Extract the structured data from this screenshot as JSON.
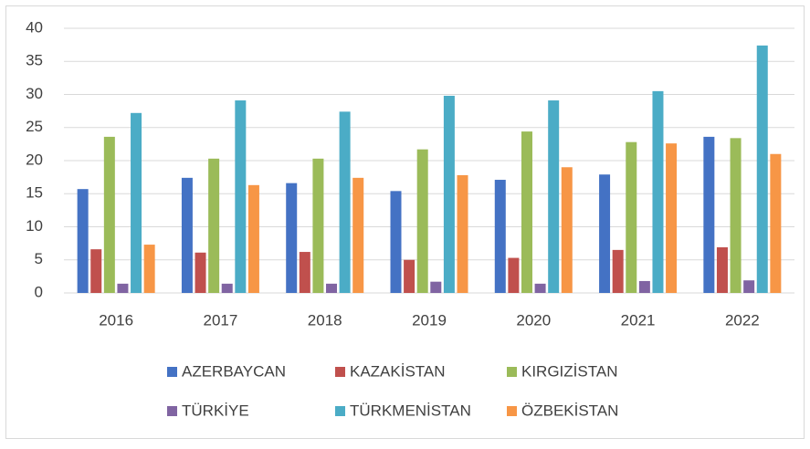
{
  "chart_data": {
    "type": "bar",
    "categories": [
      "2016",
      "2017",
      "2018",
      "2019",
      "2020",
      "2021",
      "2022"
    ],
    "series": [
      {
        "name": "AZERBAYCAN",
        "color": "#4472c4",
        "values": [
          15.7,
          17.4,
          16.6,
          15.4,
          17.1,
          17.9,
          23.6
        ]
      },
      {
        "name": "KAZAKİSTAN",
        "color": "#c0504d",
        "values": [
          6.6,
          6.1,
          6.2,
          5.0,
          5.3,
          6.5,
          6.9
        ]
      },
      {
        "name": "KIRGIZİSTAN",
        "color": "#9bbb59",
        "values": [
          23.6,
          20.3,
          20.3,
          21.7,
          24.4,
          22.8,
          23.4
        ]
      },
      {
        "name": "TÜRKİYE",
        "color": "#8064a2",
        "values": [
          1.4,
          1.4,
          1.4,
          1.7,
          1.4,
          1.8,
          1.9
        ]
      },
      {
        "name": "TÜRKMENİSTAN",
        "color": "#4bacc6",
        "values": [
          27.2,
          29.1,
          27.4,
          29.8,
          29.1,
          30.5,
          37.4
        ]
      },
      {
        "name": "ÖZBEKİSTAN",
        "color": "#f79646",
        "values": [
          7.3,
          16.3,
          17.4,
          17.8,
          19.0,
          22.6,
          21.0
        ]
      }
    ],
    "ylim": [
      0,
      40
    ],
    "yticks": [
      0,
      5,
      10,
      15,
      20,
      25,
      30,
      35,
      40
    ],
    "grid": true,
    "legend": "bottom"
  }
}
